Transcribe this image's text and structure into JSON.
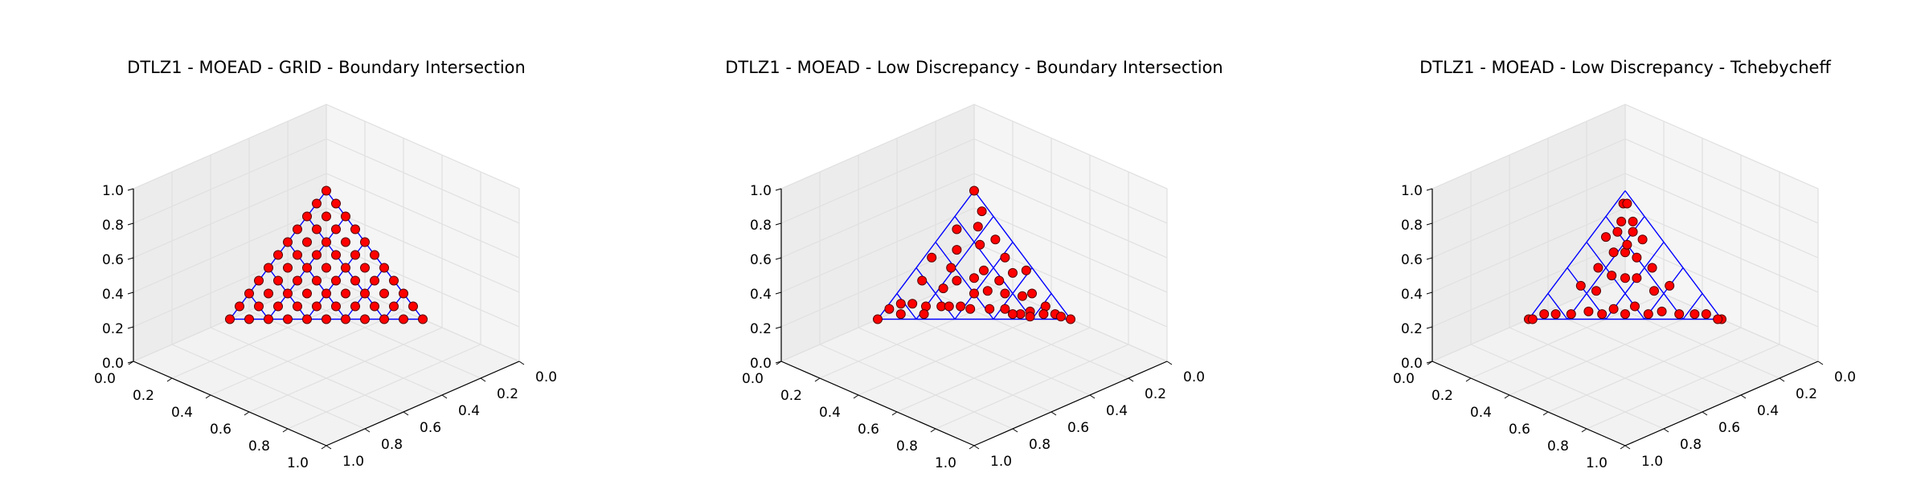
{
  "chart_data": [
    {
      "type": "scatter3d",
      "title": "DTLZ1 - MOEAD - GRID - Boundary Intersection",
      "xlim": [
        0,
        1
      ],
      "ylim": [
        0,
        1
      ],
      "zlim": [
        0,
        1
      ],
      "xticks": [
        {
          "value": 0,
          "label": "0.0"
        },
        0.2,
        0.4,
        0.6,
        0.8,
        {
          "value": 1,
          "label": "1.0"
        }
      ],
      "yticks": [
        {
          "value": 0,
          "label": "0.0"
        },
        0.2,
        0.4,
        0.6,
        0.8,
        {
          "value": 1,
          "label": "1.0"
        }
      ],
      "zticks": [
        {
          "value": 0,
          "label": "0.0"
        },
        0.2,
        0.4,
        0.6,
        0.8,
        {
          "value": 1,
          "label": "1.0"
        }
      ],
      "grid": true,
      "wireframe": {
        "color": "#0000ff",
        "segments": [
          [
            0,
            0,
            0.5,
            0,
            0.5,
            0
          ],
          [
            0.1,
            0,
            0.4,
            0.1,
            0.4,
            0
          ],
          [
            0.2,
            0,
            0.3,
            0.2,
            0.3,
            0
          ],
          [
            0.3,
            0,
            0.2,
            0.3,
            0.2,
            0
          ],
          [
            0.4,
            0,
            0.1,
            0.4,
            0.1,
            0
          ],
          [
            0,
            0,
            0.5,
            0.5,
            0,
            0
          ],
          [
            0,
            0.1,
            0.4,
            0.4,
            0.1,
            0
          ],
          [
            0,
            0.2,
            0.3,
            0.3,
            0.2,
            0
          ],
          [
            0,
            0.3,
            0.2,
            0.2,
            0.3,
            0
          ],
          [
            0,
            0.4,
            0.1,
            0.1,
            0.4,
            0
          ],
          [
            0.5,
            0,
            0,
            0,
            0.5,
            0
          ]
        ]
      },
      "series": [
        {
          "color": "#ff0000",
          "x": [
            0,
            0,
            0,
            0,
            0,
            0,
            0,
            0,
            0,
            0,
            0,
            0.05,
            0.05,
            0.05,
            0.05,
            0.05,
            0.05,
            0.05,
            0.05,
            0.05,
            0.05,
            0.1,
            0.1,
            0.1,
            0.1,
            0.1,
            0.1,
            0.1,
            0.1,
            0.1,
            0.15,
            0.15,
            0.15,
            0.15,
            0.15,
            0.15,
            0.15,
            0.15,
            0.2,
            0.2,
            0.2,
            0.2,
            0.2,
            0.2,
            0.2,
            0.25,
            0.25,
            0.25,
            0.25,
            0.25,
            0.25,
            0.3,
            0.3,
            0.3,
            0.3,
            0.3,
            0.35,
            0.35,
            0.35,
            0.35,
            0.4,
            0.4,
            0.4,
            0.45,
            0.45,
            0.5
          ],
          "y": [
            0,
            0.05,
            0.1,
            0.15,
            0.2,
            0.25,
            0.3,
            0.35,
            0.4,
            0.45,
            0.5,
            0,
            0.05,
            0.1,
            0.15,
            0.2,
            0.25,
            0.3,
            0.35,
            0.4,
            0.45,
            0,
            0.05,
            0.1,
            0.15,
            0.2,
            0.25,
            0.3,
            0.35,
            0.4,
            0,
            0.05,
            0.1,
            0.15,
            0.2,
            0.25,
            0.3,
            0.35,
            0,
            0.05,
            0.1,
            0.15,
            0.2,
            0.25,
            0.3,
            0,
            0.05,
            0.1,
            0.15,
            0.2,
            0.25,
            0,
            0.05,
            0.1,
            0.15,
            0.2,
            0,
            0.05,
            0.1,
            0.15,
            0,
            0.05,
            0.1,
            0,
            0.05,
            0
          ],
          "z": [
            0.5,
            0.45,
            0.4,
            0.35,
            0.3,
            0.25,
            0.2,
            0.15,
            0.1,
            0.05,
            0,
            0.45,
            0.4,
            0.35,
            0.3,
            0.25,
            0.2,
            0.15,
            0.1,
            0.05,
            0,
            0.4,
            0.35,
            0.3,
            0.25,
            0.2,
            0.15,
            0.1,
            0.05,
            0,
            0.35,
            0.3,
            0.25,
            0.2,
            0.15,
            0.1,
            0.05,
            0,
            0.3,
            0.25,
            0.2,
            0.15,
            0.1,
            0.05,
            0,
            0.25,
            0.2,
            0.15,
            0.1,
            0.05,
            0,
            0.2,
            0.15,
            0.1,
            0.05,
            0,
            0.15,
            0.1,
            0.05,
            0,
            0.1,
            0.05,
            0,
            0.05,
            0,
            0
          ]
        }
      ]
    },
    {
      "type": "scatter3d",
      "title": "DTLZ1 - MOEAD - Low Discrepancy - Boundary Intersection",
      "xlim": [
        0,
        1
      ],
      "ylim": [
        0,
        1
      ],
      "zlim": [
        0,
        1
      ],
      "xticks": [
        {
          "value": 0,
          "label": "0.0"
        },
        0.2,
        0.4,
        0.6,
        0.8,
        {
          "value": 1,
          "label": "1.0"
        }
      ],
      "yticks": [
        {
          "value": 0,
          "label": "0.0"
        },
        0.2,
        0.4,
        0.6,
        0.8,
        {
          "value": 1,
          "label": "1.0"
        }
      ],
      "zticks": [
        {
          "value": 0,
          "label": "0.0"
        },
        0.2,
        0.4,
        0.6,
        0.8,
        {
          "value": 1,
          "label": "1.0"
        }
      ],
      "grid": true,
      "wireframe": {
        "color": "#0000ff",
        "segments": [
          [
            0,
            0,
            0.5,
            0,
            0.5,
            0
          ],
          [
            0.1,
            0,
            0.4,
            0.1,
            0.4,
            0
          ],
          [
            0.2,
            0,
            0.3,
            0.2,
            0.3,
            0
          ],
          [
            0.3,
            0,
            0.2,
            0.3,
            0.2,
            0
          ],
          [
            0.4,
            0,
            0.1,
            0.4,
            0.1,
            0
          ],
          [
            0,
            0,
            0.5,
            0.5,
            0,
            0
          ],
          [
            0,
            0.1,
            0.4,
            0.4,
            0.1,
            0
          ],
          [
            0,
            0.2,
            0.3,
            0.3,
            0.2,
            0
          ],
          [
            0,
            0.3,
            0.2,
            0.2,
            0.3,
            0
          ],
          [
            0,
            0.4,
            0.1,
            0.1,
            0.4,
            0
          ],
          [
            0.5,
            0,
            0,
            0,
            0.5,
            0
          ]
        ]
      },
      "series": [
        {
          "color": "#ff0000",
          "x": [
            0.5,
            0,
            0,
            0.03,
            0.21,
            0.11,
            0.33,
            0.06,
            0.17,
            0.27,
            0.41,
            0.08,
            0.14,
            0.36,
            0.02,
            0.24,
            0.19,
            0.45,
            0.05,
            0.12,
            0.29,
            0.09,
            0.38,
            0.22,
            0.15,
            0.04,
            0.31,
            0.26,
            0.1,
            0.18,
            0.42,
            0.07,
            0.34,
            0.13,
            0.01,
            0.2,
            0.47,
            0.16,
            0.28,
            0.06,
            0.23,
            0.39,
            0.11,
            0.35,
            0.03
          ],
          "y": [
            0,
            0.5,
            0,
            0.12,
            0.05,
            0.27,
            0.08,
            0.38,
            0.17,
            0.19,
            0.04,
            0.06,
            0.31,
            0.12,
            0.24,
            0.11,
            0.26,
            0.03,
            0.43,
            0.09,
            0.02,
            0.21,
            0.09,
            0.24,
            0.04,
            0.31,
            0.15,
            0.06,
            0.35,
            0.13,
            0.06,
            0.16,
            0.14,
            0.22,
            0.45,
            0.2,
            0.02,
            0.29,
            0.12,
            0.02,
            0.16,
            0.1,
            0.37,
            0.05,
            0.41
          ],
          "z": [
            0,
            0,
            0.5,
            0.35,
            0.24,
            0.12,
            0.09,
            0.06,
            0.16,
            0.04,
            0.05,
            0.36,
            0.05,
            0.02,
            0.24,
            0.15,
            0.05,
            0.02,
            0.02,
            0.29,
            0.19,
            0.2,
            0.03,
            0.04,
            0.31,
            0.15,
            0.04,
            0.18,
            0.05,
            0.19,
            0.02,
            0.27,
            0.02,
            0.15,
            0.04,
            0.1,
            0.01,
            0.05,
            0.1,
            0.42,
            0.11,
            0.01,
            0.02,
            0.1,
            0.06
          ]
        }
      ]
    },
    {
      "type": "scatter3d",
      "title": "DTLZ1 - MOEAD - Low Discrepancy - Tchebycheff",
      "xlim": [
        0,
        1
      ],
      "ylim": [
        0,
        1
      ],
      "zlim": [
        0,
        1
      ],
      "xticks": [
        {
          "value": 0,
          "label": "0.0"
        },
        0.2,
        0.4,
        0.6,
        0.8,
        {
          "value": 1,
          "label": "1.0"
        }
      ],
      "yticks": [
        {
          "value": 0,
          "label": "0.0"
        },
        0.2,
        0.4,
        0.6,
        0.8,
        {
          "value": 1,
          "label": "1.0"
        }
      ],
      "zticks": [
        {
          "value": 0,
          "label": "0.0"
        },
        0.2,
        0.4,
        0.6,
        0.8,
        {
          "value": 1,
          "label": "1.0"
        }
      ],
      "grid": true,
      "wireframe": {
        "color": "#0000ff",
        "segments": [
          [
            0,
            0,
            0.5,
            0,
            0.5,
            0
          ],
          [
            0.1,
            0,
            0.4,
            0.1,
            0.4,
            0
          ],
          [
            0.2,
            0,
            0.3,
            0.2,
            0.3,
            0
          ],
          [
            0.3,
            0,
            0.2,
            0.3,
            0.2,
            0
          ],
          [
            0.4,
            0,
            0.1,
            0.4,
            0.1,
            0
          ],
          [
            0,
            0,
            0.5,
            0.5,
            0,
            0
          ],
          [
            0,
            0.1,
            0.4,
            0.4,
            0.1,
            0
          ],
          [
            0,
            0.2,
            0.3,
            0.3,
            0.2,
            0
          ],
          [
            0,
            0.3,
            0.2,
            0.2,
            0.3,
            0
          ],
          [
            0,
            0.4,
            0.1,
            0.1,
            0.4,
            0
          ],
          [
            0.5,
            0,
            0,
            0,
            0.5,
            0
          ]
        ]
      },
      "series": [
        {
          "color": "#ff0000",
          "x": [
            0.5,
            0,
            0.49,
            0.01,
            0.05,
            0.08,
            0.06,
            0.1,
            0.12,
            0.04,
            0.14,
            0.09,
            0.16,
            0.2,
            0.13,
            0.25,
            0.2,
            0.3,
            0.18,
            0.1,
            0.38,
            0.42,
            0.06,
            0.22,
            0.08,
            0.27,
            0.12,
            0.33,
            0.14,
            0.17,
            0.24,
            0.07,
            0.3,
            0.02,
            0.03,
            0.45,
            0.03,
            0.11
          ],
          "y": [
            0,
            0.5,
            0.01,
            0.49,
            0.07,
            0.04,
            0.1,
            0.06,
            0.12,
            0.14,
            0.05,
            0.15,
            0.1,
            0.14,
            0.2,
            0.2,
            0.26,
            0.18,
            0.3,
            0.38,
            0.1,
            0.06,
            0.42,
            0.08,
            0.22,
            0.12,
            0.27,
            0.14,
            0.33,
            0.17,
            0.24,
            0.3,
            0.07,
            0.03,
            0.02,
            0.03,
            0.45,
            0.1
          ],
          "z": [
            0,
            0,
            0,
            0,
            0.38,
            0.38,
            0.34,
            0.34,
            0.26,
            0.32,
            0.31,
            0.26,
            0.24,
            0.16,
            0.17,
            0.05,
            0.04,
            0.02,
            0.02,
            0.02,
            0.02,
            0.02,
            0.02,
            0.2,
            0.2,
            0.11,
            0.11,
            0.03,
            0.03,
            0.16,
            0.02,
            0.13,
            0.13,
            0.45,
            0.45,
            0.02,
            0.02,
            0.29
          ]
        }
      ]
    }
  ]
}
